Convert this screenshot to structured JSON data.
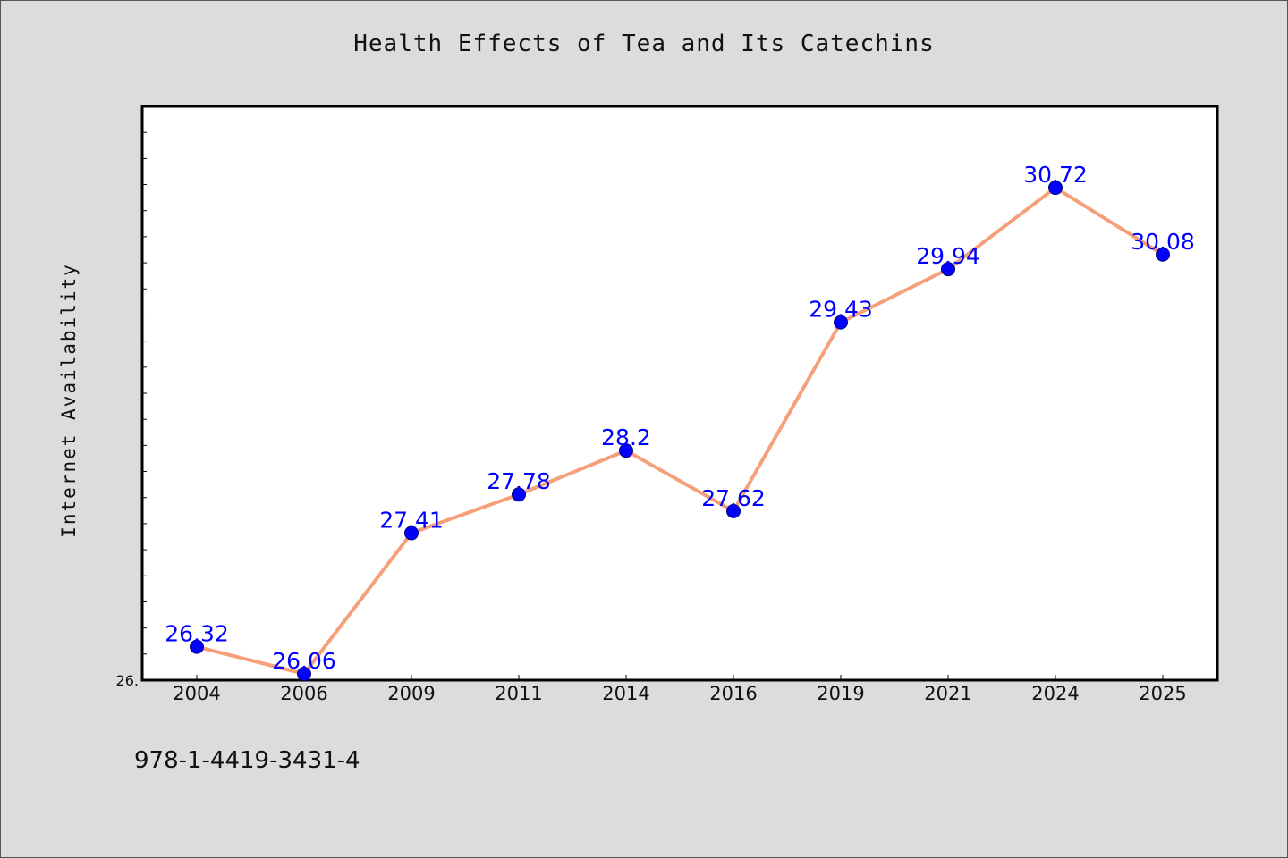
{
  "chart_data": {
    "type": "line",
    "title": "Health Effects of Tea and Its Catechins",
    "xlabel": "",
    "ylabel": "Internet Availability",
    "categories": [
      "2004",
      "2006",
      "2009",
      "2011",
      "2014",
      "2016",
      "2019",
      "2021",
      "2024",
      "2025"
    ],
    "series": [
      {
        "values": [
          26.32,
          26.06,
          27.41,
          27.78,
          28.2,
          27.62,
          29.43,
          29.94,
          30.72,
          30.08
        ]
      }
    ],
    "data_labels": [
      "26.32",
      "26.06",
      "27.41",
      "27.78",
      "28.2",
      "27.62",
      "29.43",
      "29.94",
      "30.72",
      "30.08"
    ],
    "ylim": [
      26.0,
      31.5
    ],
    "y_tick_labels": [
      "26."
    ],
    "grid": false,
    "legend": "none",
    "colors": {
      "line": "#f5a07a",
      "marker": "#0000ff",
      "data_label": "#0000ff",
      "plot_background": "#ffffff",
      "page_background": "#dcdcdc"
    }
  },
  "footer": {
    "isbn": "978-1-4419-3431-4"
  }
}
